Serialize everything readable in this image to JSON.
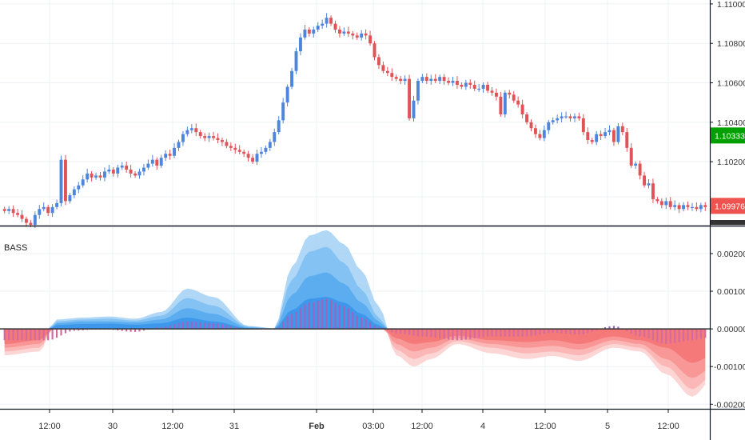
{
  "indicator": {
    "name": "BASS"
  },
  "price_pane": {
    "ticks": [
      "1.11000",
      "1.10800",
      "1.10600",
      "1.10400",
      "1.10200"
    ],
    "badges": [
      {
        "label": "1.10333",
        "color": "#00a000"
      },
      {
        "label": "1.09976",
        "color": "#ef5350"
      }
    ]
  },
  "oscillator_pane": {
    "ticks": [
      "0.00200",
      "0.00100",
      "0.00000",
      "-0.00100",
      "-0.00200"
    ]
  },
  "time_axis": {
    "labels": [
      "12:00",
      "30",
      "12:00",
      "31",
      "Feb",
      "03:00",
      "12:00",
      "4",
      "12:00",
      "5",
      "12:00"
    ]
  },
  "colors": {
    "up": "#4f86dc",
    "down": "#e05458",
    "band_pos": [
      "#a9d3f6",
      "#80c0f3",
      "#58aaf0",
      "#3a96ea"
    ],
    "band_neg": [
      "#fcd0d0",
      "#fbb3b3",
      "#f89393",
      "#f47676"
    ],
    "histo_pos": "#9a66c2",
    "histo_neg": "#d56a9e"
  },
  "chart_data": [
    {
      "type": "candlestick",
      "title": "",
      "ylim": [
        1.0988,
        1.1102
      ],
      "y_ticks": [
        1.11,
        1.108,
        1.106,
        1.104,
        1.102
      ],
      "closes": [
        1.0995,
        1.0996,
        1.0994,
        1.0993,
        1.0991,
        1.0989,
        1.0988,
        1.0993,
        1.0996,
        1.0997,
        1.0994,
        1.0997,
        1.0999,
        1.1021,
        1.1,
        1.1003,
        1.1006,
        1.1008,
        1.1011,
        1.1014,
        1.1012,
        1.1013,
        1.1012,
        1.1015,
        1.1016,
        1.1014,
        1.1017,
        1.1018,
        1.1016,
        1.1014,
        1.1013,
        1.1015,
        1.1017,
        1.1019,
        1.1021,
        1.1018,
        1.1022,
        1.1024,
        1.1023,
        1.1027,
        1.103,
        1.1034,
        1.1036,
        1.1037,
        1.1035,
        1.1033,
        1.1032,
        1.1033,
        1.1032,
        1.1031,
        1.103,
        1.1028,
        1.1027,
        1.1026,
        1.1025,
        1.1024,
        1.1022,
        1.102,
        1.1024,
        1.1025,
        1.1027,
        1.103,
        1.1035,
        1.1041,
        1.105,
        1.1058,
        1.1066,
        1.1076,
        1.1083,
        1.1087,
        1.1085,
        1.1087,
        1.1089,
        1.109,
        1.1093,
        1.109,
        1.1087,
        1.1085,
        1.1086,
        1.1085,
        1.1084,
        1.1083,
        1.1085,
        1.1084,
        1.108,
        1.1073,
        1.1069,
        1.1066,
        1.1065,
        1.1063,
        1.1062,
        1.1061,
        1.1062,
        1.1042,
        1.1051,
        1.1061,
        1.1063,
        1.1061,
        1.1062,
        1.1061,
        1.1063,
        1.1061,
        1.106,
        1.1061,
        1.1059,
        1.1058,
        1.106,
        1.1059,
        1.1057,
        1.1057,
        1.1059,
        1.1056,
        1.1055,
        1.1053,
        1.1044,
        1.1055,
        1.1054,
        1.1051,
        1.1049,
        1.1044,
        1.104,
        1.1037,
        1.1034,
        1.1032,
        1.1036,
        1.104,
        1.1041,
        1.1042,
        1.1043,
        1.1043,
        1.1042,
        1.1043,
        1.1042,
        1.1035,
        1.1031,
        1.103,
        1.1034,
        1.1033,
        1.1035,
        1.1036,
        1.103,
        1.1038,
        1.1035,
        1.1027,
        1.1018,
        1.1019,
        1.1013,
        1.1008,
        1.1009,
        1.1001,
        1.1,
        1.0998,
        1.1,
        1.0997,
        1.0998,
        1.0996,
        1.0998,
        1.0997,
        1.0997,
        1.0996,
        1.0998,
        1.0997
      ]
    },
    {
      "type": "area",
      "title": "BASS",
      "ylim": [
        -0.0021,
        0.0027
      ],
      "y_ticks": [
        0.002,
        0.001,
        0.0,
        -0.001,
        -0.002
      ],
      "bands": [
        {
          "x": [
            0,
            8,
            12,
            18,
            24,
            30,
            36,
            42,
            48,
            56,
            62,
            66,
            70,
            74,
            78,
            82,
            86,
            90,
            94,
            98,
            104,
            112,
            120,
            126,
            132,
            140,
            146,
            152,
            158,
            163
          ],
          "y": [
            -0.0007,
            -0.0006,
            0.00025,
            0.0003,
            0.00033,
            0.00027,
            0.00045,
            0.00107,
            0.00085,
            8e-05,
            2e-05,
            0.00165,
            0.00248,
            0.00262,
            0.00225,
            0.00155,
            0.0006,
            -0.0007,
            -0.001,
            -0.0008,
            -0.0004,
            -0.00065,
            -0.0008,
            -0.00072,
            -0.00085,
            -0.0005,
            -0.0006,
            -0.0012,
            -0.0018,
            -0.0013
          ]
        },
        {
          "x": [
            0,
            8,
            12,
            18,
            24,
            30,
            36,
            42,
            48,
            56,
            62,
            66,
            70,
            74,
            78,
            82,
            86,
            90,
            94,
            98,
            104,
            112,
            120,
            126,
            132,
            140,
            146,
            152,
            158,
            163
          ],
          "y": [
            -0.0006,
            -0.0005,
            0.0002,
            0.00025,
            0.00027,
            0.00022,
            0.00035,
            0.00082,
            0.00062,
            6e-05,
            1e-05,
            0.0013,
            0.00205,
            0.00218,
            0.00175,
            0.00105,
            0.0003,
            -0.00055,
            -0.0008,
            -0.00065,
            -0.00032,
            -0.0005,
            -0.00065,
            -0.0006,
            -0.0007,
            -0.0004,
            -0.0005,
            -0.001,
            -0.0016,
            -0.0012
          ]
        },
        {
          "x": [
            0,
            8,
            12,
            18,
            24,
            30,
            36,
            42,
            48,
            56,
            62,
            66,
            70,
            74,
            78,
            82,
            86,
            90,
            94,
            98,
            104,
            112,
            120,
            126,
            132,
            140,
            146,
            152,
            158,
            163
          ],
          "y": [
            -0.0005,
            -0.0004,
            0.00015,
            0.0002,
            0.0002,
            0.00017,
            0.00025,
            0.00055,
            0.0004,
            4e-05,
            0.0,
            0.0009,
            0.0014,
            0.0015,
            0.0012,
            0.0007,
            0.0002,
            -0.0004,
            -0.0006,
            -0.0005,
            -0.00025,
            -0.0004,
            -0.0005,
            -0.00045,
            -0.00055,
            -0.0003,
            -0.0004,
            -0.0008,
            -0.0013,
            -0.001
          ]
        },
        {
          "x": [
            0,
            8,
            12,
            18,
            24,
            30,
            36,
            42,
            48,
            56,
            62,
            66,
            70,
            74,
            78,
            82,
            86,
            90,
            94,
            98,
            104,
            112,
            120,
            126,
            132,
            140,
            146,
            152,
            158,
            163
          ],
          "y": [
            -0.0004,
            -0.0003,
            0.0001,
            0.00013,
            0.00014,
            0.00011,
            0.00015,
            0.0003,
            0.0002,
            2e-05,
            0.0,
            0.0005,
            0.0008,
            0.00085,
            0.0007,
            0.0004,
            0.0001,
            -0.00025,
            -0.0004,
            -0.00035,
            -0.00018,
            -0.0003,
            -0.00035,
            -0.0003,
            -0.0004,
            -0.0002,
            -0.0003,
            -0.0005,
            -0.0009,
            -0.0007
          ]
        }
      ],
      "histogram": {
        "x": [
          0,
          10,
          16,
          22,
          30,
          36,
          42,
          48,
          56,
          62,
          66,
          70,
          74,
          78,
          82,
          86,
          90,
          96,
          104,
          112,
          120,
          126,
          132,
          140,
          146,
          152,
          158,
          163
        ],
        "y": [
          -0.0003,
          -0.0003,
          -5e-05,
          0.0,
          -8e-05,
          5e-05,
          0.0002,
          0.00015,
          0.0,
          -2e-05,
          0.0004,
          0.0007,
          0.0008,
          0.0006,
          0.0003,
          5e-05,
          -0.00012,
          -0.0002,
          -0.0003,
          -0.0002,
          -0.0002,
          -0.0001,
          -0.00015,
          8e-05,
          -0.0002,
          -0.0004,
          -0.0003,
          -0.0002
        ]
      }
    }
  ]
}
